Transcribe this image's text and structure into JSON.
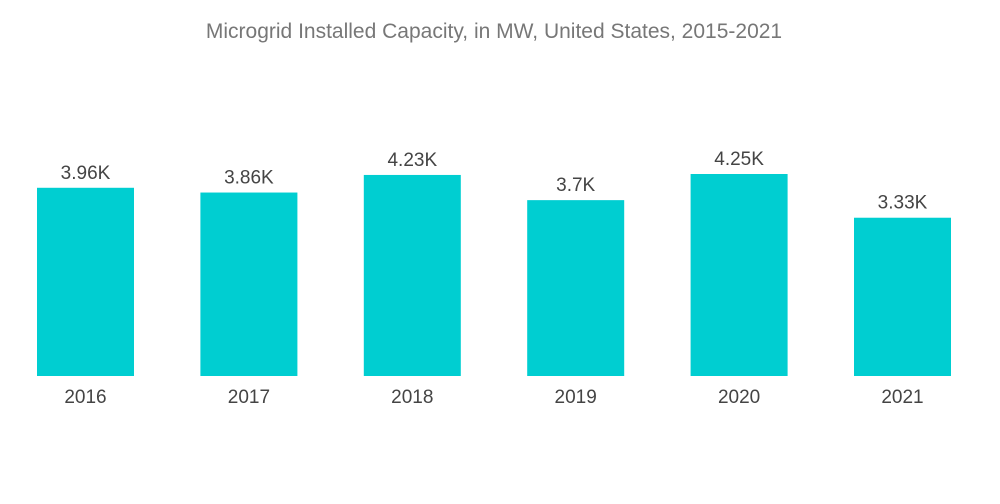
{
  "chart_data": {
    "type": "bar",
    "title": "Microgrid Installed Capacity, in MW, United States, 2015-2021",
    "xlabel": "",
    "ylabel": "",
    "categories": [
      "2016",
      "2017",
      "2018",
      "2019",
      "2020",
      "2021"
    ],
    "values": [
      3960,
      3860,
      4230,
      3700,
      4250,
      3330
    ],
    "data_labels": [
      "3.96K",
      "3.86K",
      "4.23K",
      "3.7K",
      "4.25K",
      "3.33K"
    ],
    "ylim": [
      0,
      4250
    ],
    "grid": false,
    "legend": "none",
    "bar_color": "#00CED1"
  }
}
